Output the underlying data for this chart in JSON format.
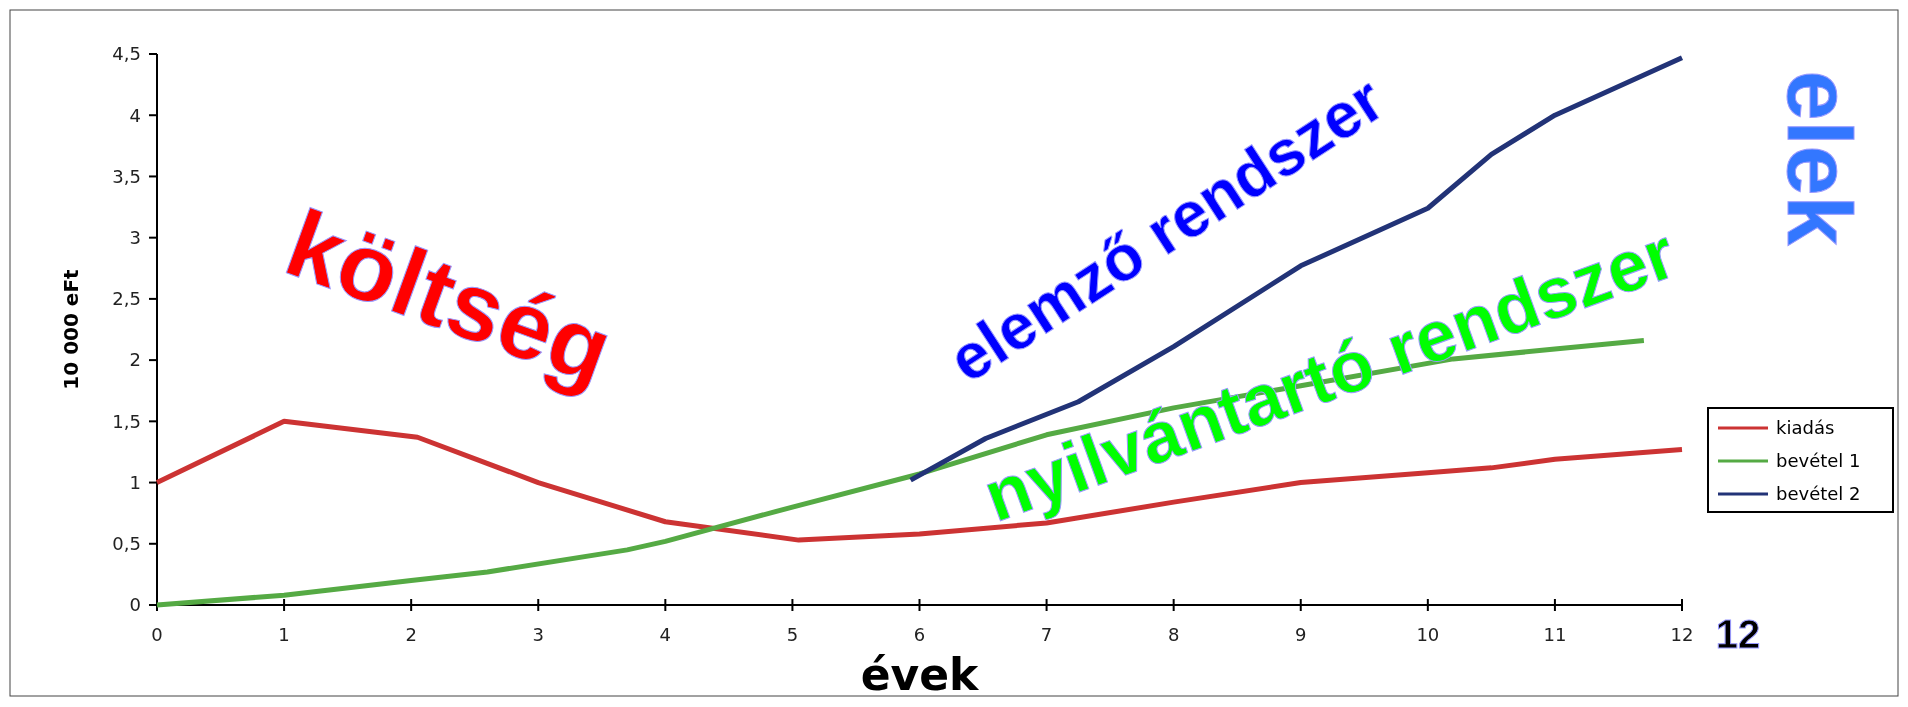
{
  "chart_data": {
    "type": "line",
    "xlabel": "évek",
    "ylabel": "10 000 eFt",
    "xlim": [
      0,
      12
    ],
    "xticks": [
      0,
      1,
      2,
      3,
      4,
      5,
      6,
      7,
      8,
      9,
      10,
      11,
      12
    ],
    "ylim": [
      0,
      4.5
    ],
    "yticks": [
      0,
      {
        "value": 0.5,
        "label": "0,5"
      },
      1,
      {
        "value": 1.5,
        "label": "1,5"
      },
      2,
      {
        "value": 2.5,
        "label": "2,5"
      },
      3,
      {
        "value": 3.5,
        "label": "3,5"
      },
      4,
      {
        "value": 4.5,
        "label": "4,5"
      }
    ],
    "grid": false,
    "legend": "right",
    "marker": "none",
    "line_style": "solid",
    "series": [
      {
        "name": "kiadás",
        "color": "#cc3333",
        "x": [
          0,
          1,
          2.05,
          3,
          4,
          5.05,
          6,
          7,
          8,
          9,
          10,
          10.5,
          11,
          12
        ],
        "values": [
          1.0,
          1.5,
          1.37,
          1.0,
          0.68,
          0.53,
          0.58,
          0.67,
          0.84,
          1.0,
          1.08,
          1.12,
          1.19,
          1.27
        ]
      },
      {
        "name": "bevétel 1",
        "color": "#55aa44",
        "x": [
          0,
          1,
          2,
          2.6,
          3.7,
          4,
          5,
          6,
          7,
          8,
          9,
          10.2,
          11,
          11.7
        ],
        "values": [
          0,
          0.08,
          0.2,
          0.27,
          0.45,
          0.52,
          0.8,
          1.07,
          1.39,
          1.61,
          1.79,
          2.01,
          2.09,
          2.16
        ]
      },
      {
        "name": "bevétel 2",
        "color": "#223377",
        "x": [
          5.93,
          6.52,
          7.25,
          8,
          9,
          10,
          10.5,
          11,
          12
        ],
        "values": [
          1.02,
          1.36,
          1.66,
          2.11,
          2.77,
          3.24,
          3.68,
          4.0,
          4.47
        ]
      }
    ],
    "annotations": [
      "költség",
      "elemző rendszer",
      "nyilvántartó rendszer",
      "elek",
      "12"
    ]
  }
}
